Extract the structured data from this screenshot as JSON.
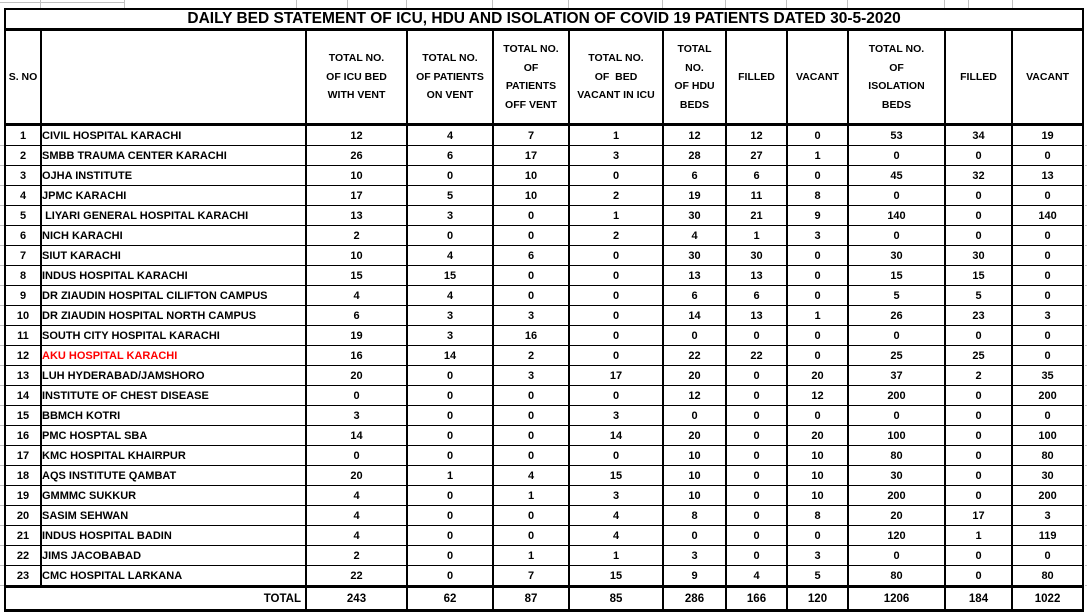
{
  "title": "DAILY BED STATEMENT OF ICU, HDU AND ISOLATION OF COVID 19 PATIENTS DATED 30-5-2020",
  "colors": {
    "text": "#000000",
    "highlight_row_text": "#ff0000",
    "table_border": "#000000",
    "sheet_gridline": "#c0c0c0",
    "background": "#ffffff"
  },
  "table": {
    "columns": [
      {
        "key": "sno",
        "label": "S. NO"
      },
      {
        "key": "hospital",
        "label": ""
      },
      {
        "key": "icu_bed_with_vent",
        "label": "TOTAL NO.\nOF ICU BED\nWITH VENT"
      },
      {
        "key": "patients_on_vent",
        "label": "TOTAL NO.\nOF PATIENTS\nON VENT"
      },
      {
        "key": "patients_off_vent",
        "label": "TOTAL NO.\nOF\nPATIENTS\nOFF VENT"
      },
      {
        "key": "bed_vacant_in_icu",
        "label": "TOTAL NO.\nOF  BED\nVACANT IN ICU"
      },
      {
        "key": "hdu_beds",
        "label": "TOTAL\nNO.\nOF HDU\nBEDS"
      },
      {
        "key": "hdu_filled",
        "label": "FILLED"
      },
      {
        "key": "hdu_vacant",
        "label": "VACANT"
      },
      {
        "key": "isolation_beds",
        "label": "TOTAL NO.\nOF\nISOLATION\nBEDS"
      },
      {
        "key": "isolation_filled",
        "label": "FILLED"
      },
      {
        "key": "isolation_vacant",
        "label": "VACANT"
      }
    ],
    "rows": [
      {
        "sno": 1,
        "name": "CIVIL HOSPITAL KARACHI",
        "values": [
          12,
          4,
          7,
          1,
          12,
          12,
          0,
          53,
          34,
          19
        ]
      },
      {
        "sno": 2,
        "name": "SMBB TRAUMA CENTER KARACHI",
        "values": [
          26,
          6,
          17,
          3,
          28,
          27,
          1,
          0,
          0,
          0
        ]
      },
      {
        "sno": 3,
        "name": "OJHA INSTITUTE",
        "values": [
          10,
          0,
          10,
          0,
          6,
          6,
          0,
          45,
          32,
          13
        ]
      },
      {
        "sno": 4,
        "name": "JPMC KARACHI",
        "values": [
          17,
          5,
          10,
          2,
          19,
          11,
          8,
          0,
          0,
          0
        ]
      },
      {
        "sno": 5,
        "name": " LIYARI GENERAL HOSPITAL KARACHI",
        "values": [
          13,
          3,
          0,
          1,
          30,
          21,
          9,
          140,
          0,
          140
        ]
      },
      {
        "sno": 6,
        "name": "NICH KARACHI",
        "values": [
          2,
          0,
          0,
          2,
          4,
          1,
          3,
          0,
          0,
          0
        ]
      },
      {
        "sno": 7,
        "name": "SIUT KARACHI",
        "values": [
          10,
          4,
          6,
          0,
          30,
          30,
          0,
          30,
          30,
          0
        ]
      },
      {
        "sno": 8,
        "name": "INDUS HOSPITAL KARACHI",
        "values": [
          15,
          15,
          0,
          0,
          13,
          13,
          0,
          15,
          15,
          0
        ]
      },
      {
        "sno": 9,
        "name": "DR ZIAUDIN HOSPITAL CILIFTON CAMPUS",
        "values": [
          4,
          4,
          0,
          0,
          6,
          6,
          0,
          5,
          5,
          0
        ]
      },
      {
        "sno": 10,
        "name": "DR ZIAUDIN HOSPITAL NORTH CAMPUS",
        "values": [
          6,
          3,
          3,
          0,
          14,
          13,
          1,
          26,
          23,
          3
        ]
      },
      {
        "sno": 11,
        "name": "SOUTH CITY HOSPITAL KARACHI",
        "values": [
          19,
          3,
          16,
          0,
          0,
          0,
          0,
          0,
          0,
          0
        ]
      },
      {
        "sno": 12,
        "name": "AKU HOSPITAL KARACHI",
        "values": [
          16,
          14,
          2,
          0,
          22,
          22,
          0,
          25,
          25,
          0
        ],
        "color": "#ff0000"
      },
      {
        "sno": 13,
        "name": "LUH HYDERABAD/JAMSHORO",
        "values": [
          20,
          0,
          3,
          17,
          20,
          0,
          20,
          37,
          2,
          35
        ]
      },
      {
        "sno": 14,
        "name": "INSTITUTE OF CHEST DISEASE",
        "values": [
          0,
          0,
          0,
          0,
          12,
          0,
          12,
          200,
          0,
          200
        ]
      },
      {
        "sno": 15,
        "name": "BBMCH KOTRI",
        "values": [
          3,
          0,
          0,
          3,
          0,
          0,
          0,
          0,
          0,
          0
        ]
      },
      {
        "sno": 16,
        "name": "PMC HOSPTAL SBA",
        "values": [
          14,
          0,
          0,
          14,
          20,
          0,
          20,
          100,
          0,
          100
        ]
      },
      {
        "sno": 17,
        "name": "KMC HOSPITAL KHAIRPUR",
        "values": [
          0,
          0,
          0,
          0,
          10,
          0,
          10,
          80,
          0,
          80
        ]
      },
      {
        "sno": 18,
        "name": "AQS INSTITUTE QAMBAT",
        "values": [
          20,
          1,
          4,
          15,
          10,
          0,
          10,
          30,
          0,
          30
        ]
      },
      {
        "sno": 19,
        "name": "GMMMC SUKKUR",
        "values": [
          4,
          0,
          1,
          3,
          10,
          0,
          10,
          200,
          0,
          200
        ]
      },
      {
        "sno": 20,
        "name": "SASIM SEHWAN",
        "values": [
          4,
          0,
          0,
          4,
          8,
          0,
          8,
          20,
          17,
          3
        ]
      },
      {
        "sno": 21,
        "name": "INDUS HOSPITAL BADIN",
        "values": [
          4,
          0,
          0,
          4,
          0,
          0,
          0,
          120,
          1,
          119
        ]
      },
      {
        "sno": 22,
        "name": "JIMS JACOBABAD",
        "values": [
          2,
          0,
          1,
          1,
          3,
          0,
          3,
          0,
          0,
          0
        ]
      },
      {
        "sno": 23,
        "name": "CMC HOSPITAL LARKANA",
        "values": [
          22,
          0,
          7,
          15,
          9,
          4,
          5,
          80,
          0,
          80
        ]
      }
    ],
    "total": {
      "label": "TOTAL",
      "values": [
        243,
        62,
        87,
        85,
        286,
        166,
        120,
        1206,
        184,
        1022
      ]
    }
  }
}
